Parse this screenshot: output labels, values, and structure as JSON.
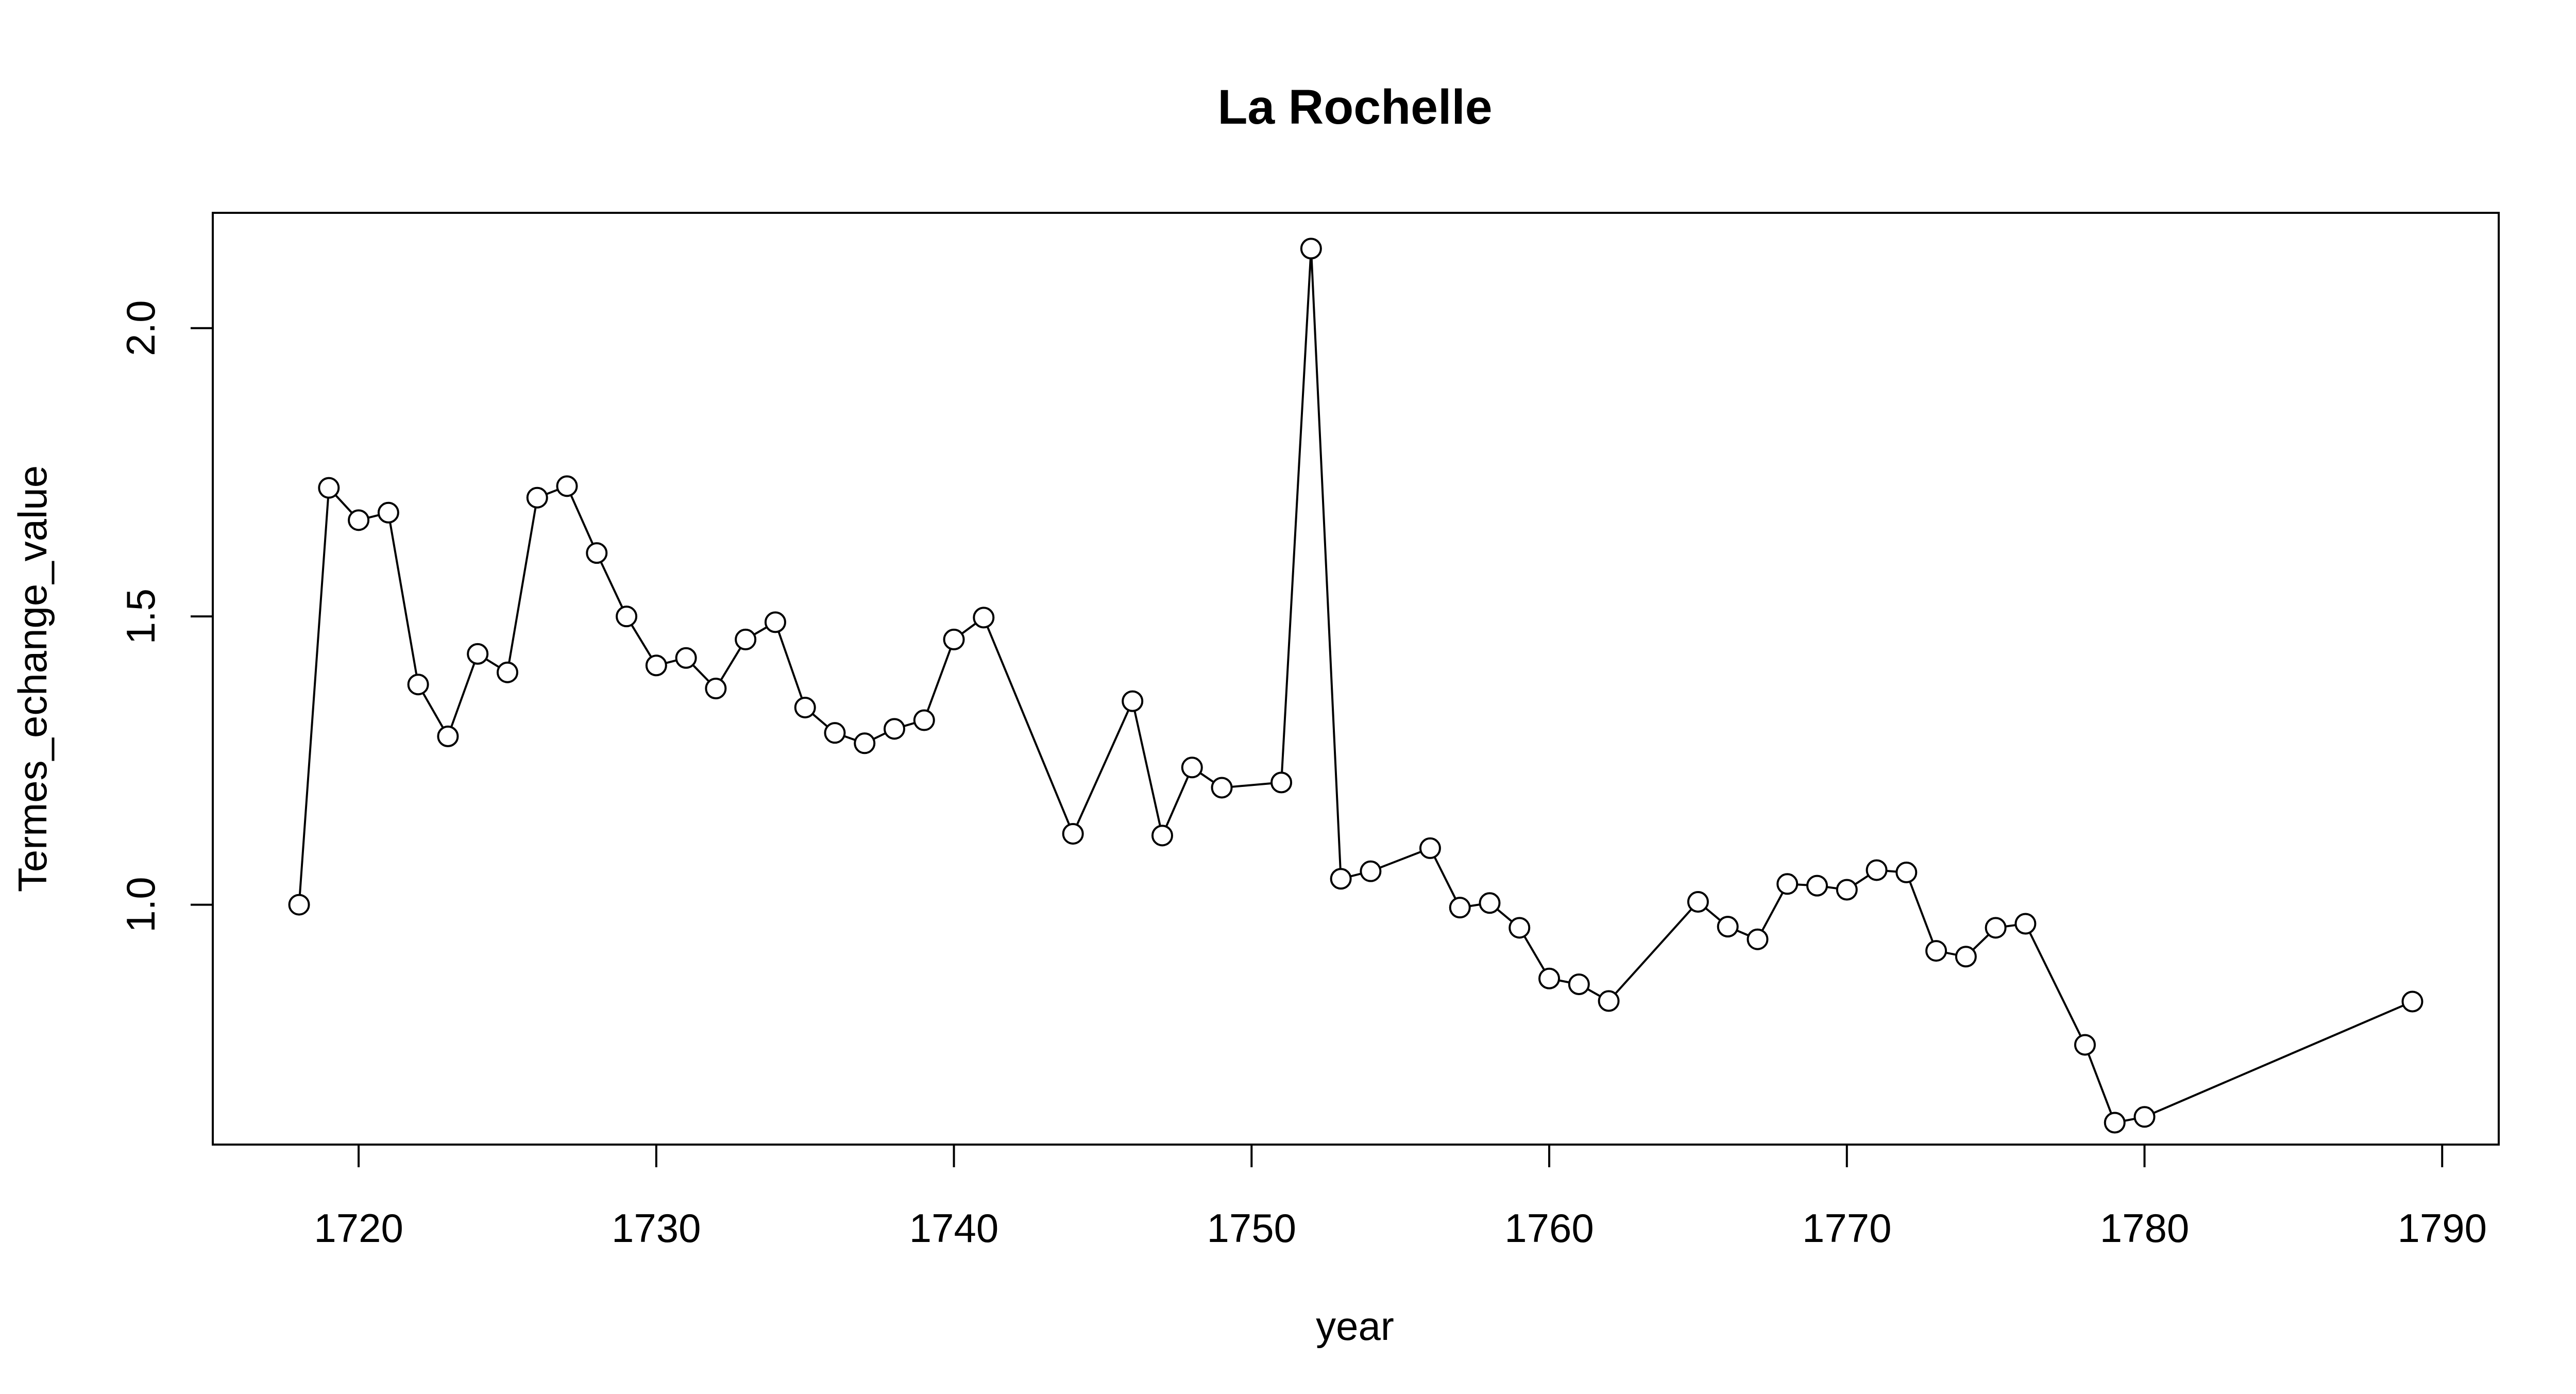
{
  "chart_data": {
    "type": "line",
    "title": "La Rochelle",
    "xlabel": "year",
    "ylabel": "Termes_echange_value",
    "xlim": [
      1715.1,
      1791.9
    ],
    "ylim": [
      0.584,
      2.2
    ],
    "xticks": [
      1720,
      1730,
      1740,
      1750,
      1760,
      1770,
      1780,
      1790
    ],
    "yticks": [
      1.0,
      1.5,
      2.0
    ],
    "ytick_labels": [
      "1.0",
      "1.5",
      "2.0"
    ],
    "grid": false,
    "legend": "none",
    "marker": "open-circle",
    "line_color": "#000000",
    "series": [
      {
        "x": [
          1718,
          1719,
          1720,
          1721,
          1722,
          1723,
          1724,
          1725,
          1726,
          1727,
          1728,
          1729,
          1730,
          1731,
          1732,
          1733,
          1734,
          1735,
          1736,
          1737,
          1738,
          1739,
          1740,
          1741,
          1744,
          1746,
          1747,
          1748,
          1749,
          1751,
          1752,
          1753,
          1754,
          1756,
          1757,
          1758,
          1759,
          1760,
          1761,
          1762,
          1765,
          1766,
          1767,
          1768,
          1769,
          1770,
          1771,
          1772,
          1773,
          1774,
          1775,
          1776,
          1778,
          1779,
          1780,
          1789
        ],
        "values": [
          1.0,
          1.723,
          1.667,
          1.68,
          1.382,
          1.292,
          1.435,
          1.403,
          1.706,
          1.726,
          1.61,
          1.5,
          1.415,
          1.428,
          1.375,
          1.46,
          1.49,
          1.342,
          1.298,
          1.28,
          1.305,
          1.32,
          1.46,
          1.498,
          1.123,
          1.353,
          1.12,
          1.238,
          1.203,
          1.212,
          2.138,
          1.045,
          1.058,
          1.098,
          0.995,
          1.003,
          0.96,
          0.872,
          0.862,
          0.833,
          1.005,
          0.962,
          0.94,
          1.036,
          1.033,
          1.026,
          1.06,
          1.056,
          0.92,
          0.91,
          0.96,
          0.967,
          0.757,
          0.622,
          0.632,
          0.832
        ]
      }
    ]
  }
}
